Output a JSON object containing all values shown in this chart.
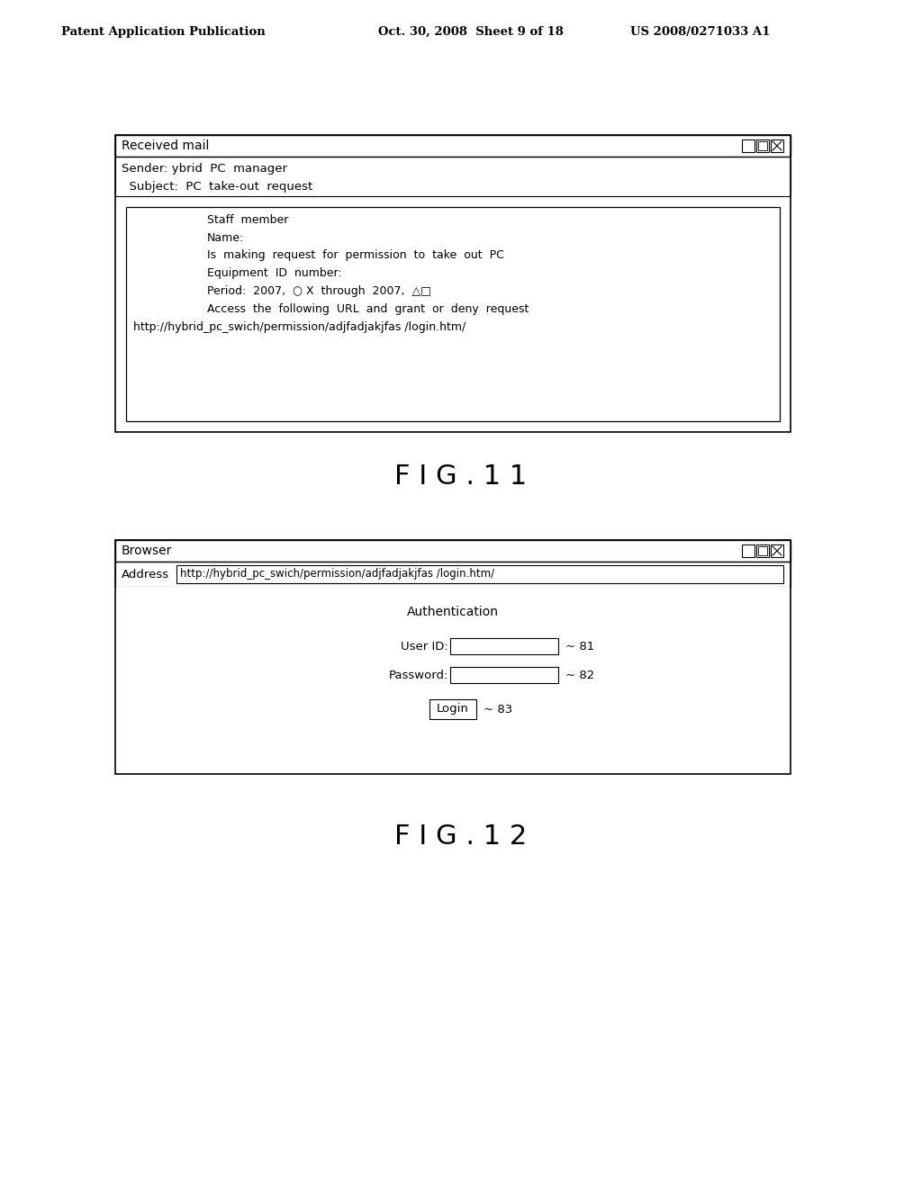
{
  "bg_color": "#ffffff",
  "text_color": "#000000",
  "header_left": "Patent Application Publication",
  "header_mid": "Oct. 30, 2008  Sheet 9 of 18",
  "header_right": "US 2008/0271033 A1",
  "fig11_label": "F I G . 1 1",
  "fig12_label": "F I G . 1 2",
  "mail_window": {
    "title": "Received mail",
    "sender": "Sender: ybrid  PC  manager",
    "subject": "  Subject:  PC  take-out  request",
    "body_lines": [
      "Staff  member",
      "Name:",
      "Is  making  request  for  permission  to  take  out  PC",
      "Equipment  ID  number:",
      "Period:  2007,  ○ X  through  2007,  △□",
      "Access  the  following  URL  and  grant  or  deny  request",
      "http://hybrid_pc_swich/permission/adjfadjakjfas /login.htm/"
    ]
  },
  "browser_window": {
    "title": "Browser",
    "address_label": "Address",
    "address_url": "http://hybrid_pc_swich/permission/adjfadjakjfas /login.htm/",
    "auth_title": "Authentication",
    "userid_label": "User ID:",
    "password_label": "Password:",
    "login_label": "Login",
    "ref_81": "~ 81",
    "ref_82": "~ 82",
    "ref_83": "~ 83"
  }
}
